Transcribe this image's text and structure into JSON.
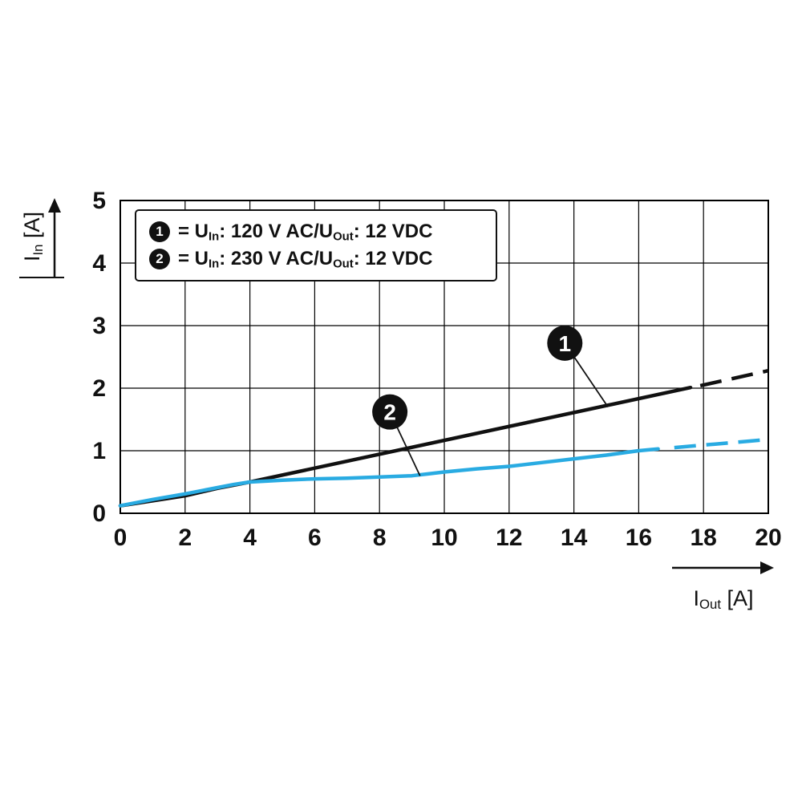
{
  "page": {
    "background": "#ffffff"
  },
  "colors": {
    "grid": "#000000",
    "axis_text": "#111111",
    "badge_bg": "#111111",
    "badge_text": "#ffffff",
    "series1": "#111111",
    "series2": "#29abe2"
  },
  "axes": {
    "x": {
      "label_segments": [
        {
          "text": "I"
        },
        {
          "sub": "Out"
        },
        {
          "text": " [A]"
        }
      ],
      "ticks": [
        0,
        2,
        4,
        6,
        8,
        10,
        12,
        14,
        16,
        18,
        20
      ]
    },
    "y": {
      "label_segments": [
        {
          "text": "I"
        },
        {
          "sub": "In"
        },
        {
          "text": " [A]"
        }
      ],
      "ticks": [
        0,
        1,
        2,
        3,
        4,
        5
      ]
    }
  },
  "legend": {
    "items": [
      {
        "badge": "1",
        "segments": [
          {
            "text": "= U"
          },
          {
            "sub": "In"
          },
          {
            "text": ": 120 V AC/U"
          },
          {
            "sub": "Out"
          },
          {
            "text": ": 12 VDC"
          }
        ]
      },
      {
        "badge": "2",
        "segments": [
          {
            "text": "= U"
          },
          {
            "sub": "In"
          },
          {
            "text": ": 230 V AC/U"
          },
          {
            "sub": "Out"
          },
          {
            "text": ": 12 VDC"
          }
        ]
      }
    ]
  },
  "chart_data": {
    "type": "line",
    "title": "",
    "xlabel": "I_Out [A]",
    "ylabel": "I_In [A]",
    "xlim": [
      0,
      20
    ],
    "ylim": [
      0,
      5
    ],
    "x_ticks": [
      0,
      2,
      4,
      6,
      8,
      10,
      12,
      14,
      16,
      18,
      20
    ],
    "y_ticks": [
      0,
      1,
      2,
      3,
      4,
      5
    ],
    "grid": true,
    "legend_position": "top-left",
    "series": [
      {
        "name": "U_In: 120 V AC / U_Out: 12 VDC",
        "color": "#111111",
        "solid": [
          [
            0,
            0.12
          ],
          [
            0.5,
            0.16
          ],
          [
            1,
            0.2
          ],
          [
            2,
            0.28
          ],
          [
            3,
            0.4
          ],
          [
            4,
            0.5
          ],
          [
            17.6,
            2.01
          ]
        ],
        "dashed": [
          [
            17.9,
            2.04
          ],
          [
            20,
            2.28
          ]
        ]
      },
      {
        "name": "U_In: 230 V AC / U_Out: 12 VDC",
        "color": "#29abe2",
        "solid": [
          [
            0,
            0.12
          ],
          [
            0.5,
            0.17
          ],
          [
            1,
            0.22
          ],
          [
            2,
            0.31
          ],
          [
            3,
            0.41
          ],
          [
            3.5,
            0.46
          ],
          [
            4,
            0.5
          ],
          [
            5,
            0.53
          ],
          [
            6,
            0.55
          ],
          [
            7,
            0.56
          ],
          [
            8,
            0.58
          ],
          [
            9,
            0.6
          ],
          [
            9.5,
            0.63
          ],
          [
            10,
            0.66
          ],
          [
            11,
            0.71
          ],
          [
            12,
            0.75
          ],
          [
            13,
            0.81
          ],
          [
            14,
            0.87
          ],
          [
            15,
            0.93
          ],
          [
            16,
            1.0
          ],
          [
            16.6,
            1.03
          ]
        ],
        "dashed": [
          [
            17.1,
            1.05
          ],
          [
            20,
            1.18
          ]
        ]
      }
    ],
    "callouts": [
      {
        "label": "1",
        "cx": 13.72,
        "cy": 2.72,
        "tx": 15.05,
        "ty": 1.7
      },
      {
        "label": "2",
        "cx": 8.32,
        "cy": 1.62,
        "tx": 9.25,
        "ty": 0.6
      }
    ]
  }
}
